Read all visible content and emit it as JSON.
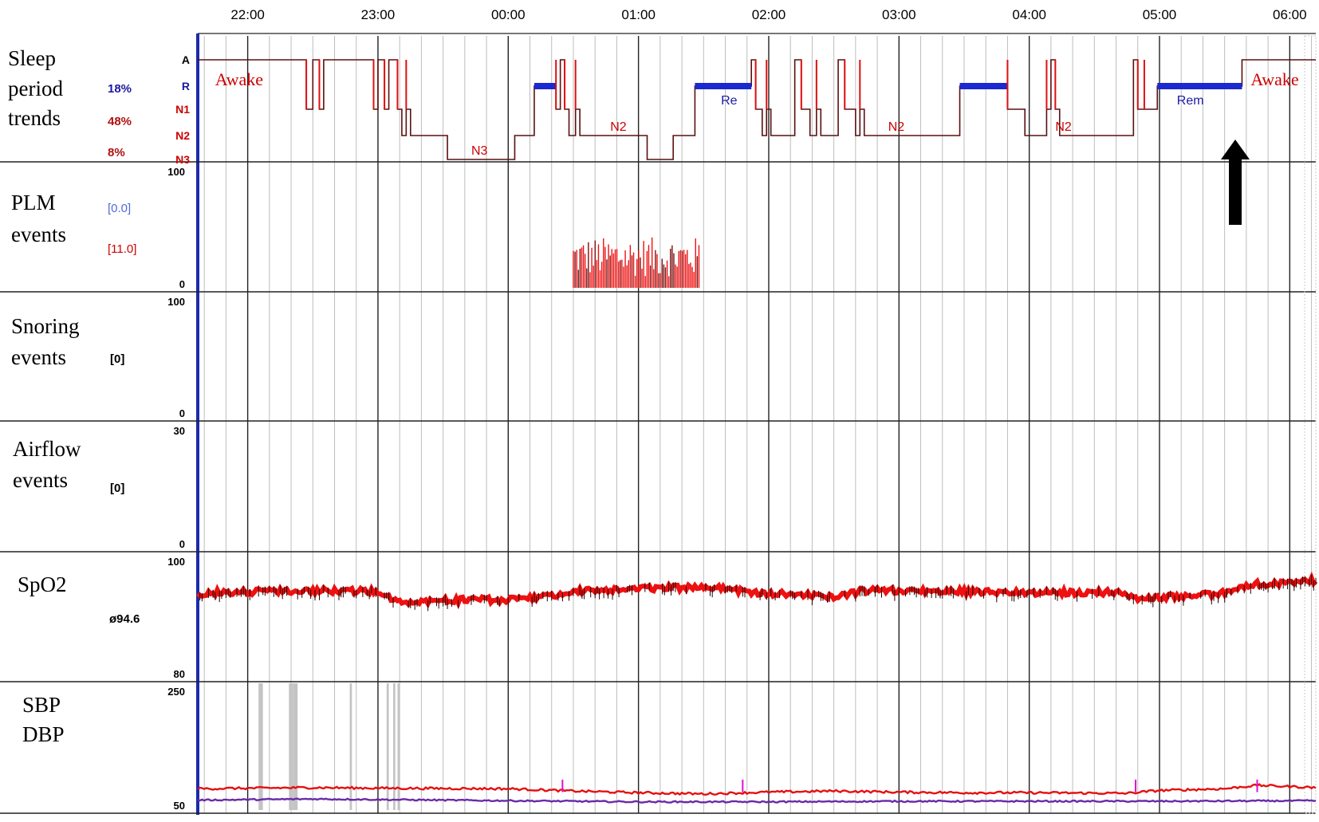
{
  "chart_data": {
    "type": "line",
    "time_axis": {
      "tick_labels": [
        "22:00",
        "23:00",
        "00:00",
        "01:00",
        "02:00",
        "03:00",
        "04:00",
        "05:00",
        "06:00"
      ],
      "start": "21:37",
      "end": "06:12"
    },
    "panels": [
      {
        "id": "hypnogram",
        "title_lines": [
          "Sleep",
          "period",
          "trends"
        ],
        "percentages": [
          {
            "text": "18%",
            "color": "#1a1aa0"
          },
          {
            "text": "48%",
            "color": "#b01010"
          },
          {
            "text": "8%",
            "color": "#b01010"
          }
        ],
        "stage_labels": [
          {
            "text": "A",
            "color": "#000000"
          },
          {
            "text": "R",
            "color": "#1a1aa0"
          },
          {
            "text": "N1",
            "color": "#cc0000"
          },
          {
            "text": "N2",
            "color": "#cc0000"
          },
          {
            "text": "N3",
            "color": "#cc0000"
          }
        ],
        "annotations": [
          {
            "text": "Awake",
            "at": "21:45",
            "stage": "A",
            "color": "#cc0000",
            "big": true
          },
          {
            "text": "N3",
            "at": "23:43",
            "stage": "N3",
            "color": "#cc0000"
          },
          {
            "text": "N2",
            "at": "00:47",
            "stage": "N2",
            "color": "#cc0000"
          },
          {
            "text": "Re",
            "at": "01:38",
            "stage": "N1",
            "color": "#1a1aa0"
          },
          {
            "text": "N2",
            "at": "02:55",
            "stage": "N2",
            "color": "#cc0000"
          },
          {
            "text": "N2",
            "at": "04:12",
            "stage": "N2",
            "color": "#cc0000"
          },
          {
            "text": "Rem",
            "at": "05:08",
            "stage": "N1",
            "color": "#1a1aa0"
          },
          {
            "text": "Awake",
            "at": "05:42",
            "stage": "A",
            "color": "#cc0000",
            "big": true
          }
        ],
        "stages": [
          {
            "from": "21:37",
            "to": "21:52",
            "stage": "A"
          },
          {
            "from": "21:52",
            "to": "22:27",
            "stage": "A"
          },
          {
            "from": "22:27",
            "to": "22:30",
            "stage": "N1"
          },
          {
            "from": "22:30",
            "to": "22:33",
            "stage": "A"
          },
          {
            "from": "22:33",
            "to": "22:35",
            "stage": "N1"
          },
          {
            "from": "22:35",
            "to": "22:58",
            "stage": "A"
          },
          {
            "from": "22:58",
            "to": "23:00",
            "stage": "N1"
          },
          {
            "from": "23:00",
            "to": "23:03",
            "stage": "A"
          },
          {
            "from": "23:03",
            "to": "23:05",
            "stage": "N1"
          },
          {
            "from": "23:05",
            "to": "23:09",
            "stage": "A"
          },
          {
            "from": "23:09",
            "to": "23:11",
            "stage": "N1"
          },
          {
            "from": "23:11",
            "to": "23:13",
            "stage": "N2"
          },
          {
            "from": "23:13",
            "to": "23:15",
            "stage": "N1"
          },
          {
            "from": "23:15",
            "to": "23:18",
            "stage": "N2"
          },
          {
            "from": "23:18",
            "to": "23:32",
            "stage": "N2"
          },
          {
            "from": "23:32",
            "to": "00:03",
            "stage": "N3"
          },
          {
            "from": "00:03",
            "to": "00:12",
            "stage": "N2"
          },
          {
            "from": "00:12",
            "to": "00:22",
            "stage": "R"
          },
          {
            "from": "00:22",
            "to": "00:24",
            "stage": "N1"
          },
          {
            "from": "00:24",
            "to": "00:26",
            "stage": "A"
          },
          {
            "from": "00:26",
            "to": "00:28",
            "stage": "N1"
          },
          {
            "from": "00:28",
            "to": "00:31",
            "stage": "N2"
          },
          {
            "from": "00:31",
            "to": "00:33",
            "stage": "N1"
          },
          {
            "from": "00:33",
            "to": "01:04",
            "stage": "N2"
          },
          {
            "from": "01:04",
            "to": "01:16",
            "stage": "N3"
          },
          {
            "from": "01:16",
            "to": "01:26",
            "stage": "N2"
          },
          {
            "from": "01:26",
            "to": "01:52",
            "stage": "R"
          },
          {
            "from": "01:52",
            "to": "01:54",
            "stage": "A"
          },
          {
            "from": "01:54",
            "to": "01:57",
            "stage": "N1"
          },
          {
            "from": "01:57",
            "to": "01:59",
            "stage": "N2"
          },
          {
            "from": "01:59",
            "to": "02:01",
            "stage": "N1"
          },
          {
            "from": "02:01",
            "to": "02:12",
            "stage": "N2"
          },
          {
            "from": "02:12",
            "to": "02:15",
            "stage": "A"
          },
          {
            "from": "02:15",
            "to": "02:19",
            "stage": "N1"
          },
          {
            "from": "02:19",
            "to": "02:22",
            "stage": "N2"
          },
          {
            "from": "02:22",
            "to": "02:24",
            "stage": "N1"
          },
          {
            "from": "02:24",
            "to": "02:32",
            "stage": "N2"
          },
          {
            "from": "02:32",
            "to": "02:35",
            "stage": "A"
          },
          {
            "from": "02:35",
            "to": "02:40",
            "stage": "N1"
          },
          {
            "from": "02:40",
            "to": "02:42",
            "stage": "N2"
          },
          {
            "from": "02:42",
            "to": "02:44",
            "stage": "N1"
          },
          {
            "from": "02:44",
            "to": "03:28",
            "stage": "N2"
          },
          {
            "from": "03:28",
            "to": "03:50",
            "stage": "R"
          },
          {
            "from": "03:50",
            "to": "03:58",
            "stage": "N1"
          },
          {
            "from": "03:58",
            "to": "04:08",
            "stage": "N2"
          },
          {
            "from": "04:08",
            "to": "04:10",
            "stage": "N1"
          },
          {
            "from": "04:10",
            "to": "04:12",
            "stage": "A"
          },
          {
            "from": "04:12",
            "to": "04:14",
            "stage": "N1"
          },
          {
            "from": "04:14",
            "to": "04:16",
            "stage": "N2"
          },
          {
            "from": "04:16",
            "to": "04:48",
            "stage": "N2"
          },
          {
            "from": "04:48",
            "to": "04:50",
            "stage": "A"
          },
          {
            "from": "04:50",
            "to": "04:53",
            "stage": "N1"
          },
          {
            "from": "04:53",
            "to": "04:59",
            "stage": "N1"
          },
          {
            "from": "04:59",
            "to": "05:38",
            "stage": "R"
          },
          {
            "from": "05:38",
            "to": "06:12",
            "stage": "A"
          }
        ]
      },
      {
        "id": "plm",
        "title_lines": [
          "PLM",
          "events"
        ],
        "ymax_label": "100",
        "ymin_label": "0",
        "indices": [
          {
            "text": "[0.0]",
            "color": "#4f6bd8"
          },
          {
            "text": "[11.0]",
            "color": "#cc0000"
          }
        ],
        "bursts": [
          {
            "from": "00:30",
            "to": "01:28",
            "min": 10,
            "max": 45
          }
        ]
      },
      {
        "id": "snoring",
        "title_lines": [
          "Snoring",
          "events"
        ],
        "ymax_label": "100",
        "ymin_label": "0",
        "indices": [
          {
            "text": "[0]",
            "color": "#000000"
          }
        ]
      },
      {
        "id": "airflow",
        "title_lines": [
          "Airflow",
          "events"
        ],
        "ymax_label": "30",
        "ymin_label": "0",
        "indices": [
          {
            "text": "[0]",
            "color": "#000000"
          }
        ]
      },
      {
        "id": "spo2",
        "title_lines": [
          "SpO2"
        ],
        "ymax_label": "100",
        "ymin_label": "80",
        "ylim": [
          80,
          100
        ],
        "indices": [
          {
            "text": "ø94.6",
            "color": "#000000"
          }
        ],
        "trend": [
          [
            "21:37",
            95
          ],
          [
            "22:00",
            95.3
          ],
          [
            "22:30",
            95.5
          ],
          [
            "23:00",
            95.4
          ],
          [
            "23:10",
            93.5
          ],
          [
            "23:30",
            93.8
          ],
          [
            "00:00",
            93.9
          ],
          [
            "00:20",
            94.5
          ],
          [
            "00:30",
            95.3
          ],
          [
            "01:00",
            95.8
          ],
          [
            "01:30",
            96.2
          ],
          [
            "02:00",
            95.0
          ],
          [
            "02:30",
            94.5
          ],
          [
            "02:45",
            95.5
          ],
          [
            "03:15",
            95.5
          ],
          [
            "03:45",
            95.2
          ],
          [
            "04:00",
            95.1
          ],
          [
            "04:40",
            95.2
          ],
          [
            "04:50",
            93.8
          ],
          [
            "05:00",
            94.4
          ],
          [
            "05:30",
            95.0
          ],
          [
            "05:40",
            96.5
          ],
          [
            "06:12",
            97.3
          ]
        ]
      },
      {
        "id": "bp",
        "title_lines": [
          "SBP",
          "DBP"
        ],
        "ymax_label": "250",
        "ymin_label": "50",
        "ylim": [
          50,
          250
        ],
        "series": [
          {
            "name": "SBP",
            "color": "#e61010",
            "trend": [
              [
                "21:37",
                86
              ],
              [
                "22:30",
                88
              ],
              [
                "23:00",
                87
              ],
              [
                "00:00",
                86
              ],
              [
                "00:30",
                82
              ],
              [
                "01:00",
                79
              ],
              [
                "01:30",
                77
              ],
              [
                "02:00",
                80
              ],
              [
                "02:30",
                82
              ],
              [
                "03:00",
                80
              ],
              [
                "03:30",
                79
              ],
              [
                "04:00",
                79
              ],
              [
                "04:45",
                78
              ],
              [
                "05:00",
                83
              ],
              [
                "05:30",
                86
              ],
              [
                "05:45",
                92
              ],
              [
                "06:12",
                88
              ]
            ]
          },
          {
            "name": "DBP",
            "color": "#6a2aa8",
            "trend": [
              [
                "21:37",
                66
              ],
              [
                "22:30",
                68
              ],
              [
                "23:00",
                67
              ],
              [
                "00:00",
                65
              ],
              [
                "01:00",
                63
              ],
              [
                "02:00",
                63
              ],
              [
                "03:00",
                64
              ],
              [
                "04:00",
                64
              ],
              [
                "05:00",
                64
              ],
              [
                "06:12",
                65
              ]
            ]
          }
        ]
      }
    ]
  }
}
